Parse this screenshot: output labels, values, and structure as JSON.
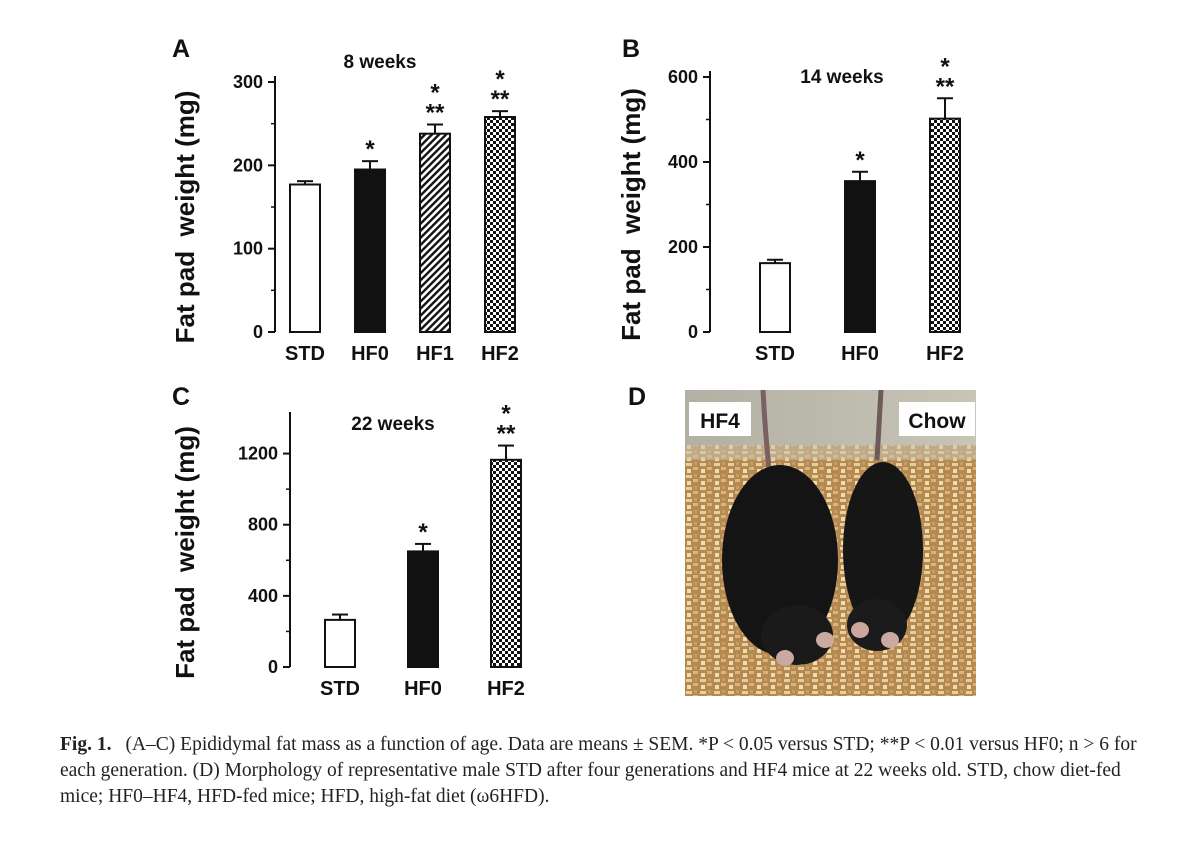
{
  "chart_data": [
    {
      "panel": "A",
      "type": "bar",
      "title": "8 weeks",
      "ylabel": "Fat pad  weight (mg)",
      "categories": [
        "STD",
        "HF0",
        "HF1",
        "HF2"
      ],
      "values": [
        177,
        195,
        238,
        258
      ],
      "errors": [
        4,
        10,
        11,
        7
      ],
      "fills": [
        "white",
        "black",
        "hatch",
        "checker"
      ],
      "significance": [
        "",
        "*",
        "*\n**",
        "*\n**"
      ],
      "ylim": [
        0,
        300
      ],
      "yticks": [
        0,
        100,
        200,
        300
      ]
    },
    {
      "panel": "B",
      "type": "bar",
      "title": "14 weeks",
      "ylabel": "Fat pad  weight (mg)",
      "categories": [
        "STD",
        "HF0",
        "HF2"
      ],
      "values": [
        162,
        355,
        502
      ],
      "errors": [
        8,
        22,
        48
      ],
      "fills": [
        "white",
        "black",
        "checker"
      ],
      "significance": [
        "",
        "*",
        "*\n**"
      ],
      "ylim": [
        0,
        600
      ],
      "yticks": [
        0,
        200,
        400,
        600
      ]
    },
    {
      "panel": "C",
      "type": "bar",
      "title": "22 weeks",
      "ylabel": "Fat pad  weight (mg)",
      "categories": [
        "STD",
        "HF0",
        "HF2"
      ],
      "values": [
        265,
        650,
        1165
      ],
      "errors": [
        30,
        42,
        80
      ],
      "fills": [
        "white",
        "black",
        "checker"
      ],
      "significance": [
        "",
        "*",
        "*\n**"
      ],
      "ylim": [
        0,
        1400
      ],
      "yticks": [
        0,
        400,
        800,
        1200
      ]
    }
  ],
  "photo_panel": {
    "letter": "D",
    "left_label": "HF4",
    "right_label": "Chow"
  },
  "caption": {
    "label": "Fig.  1.",
    "text": "(A–C) Epididymal fat mass as a function of age. Data are means ± SEM. *P < 0.05 versus STD; **P < 0.01 versus HF0; n > 6 for each generation. (D) Morphology of representative male STD after four generations and HF4 mice at 22 weeks old. STD, chow diet-fed mice; HF0–HF4, HFD-fed mice; HFD, high-fat diet (ω6HFD)."
  }
}
